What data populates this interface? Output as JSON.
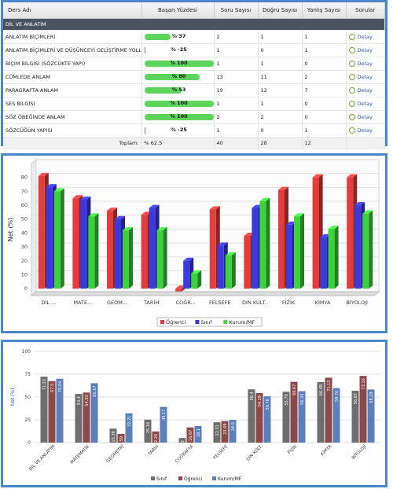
{
  "table": {
    "headers": [
      "Ders Adı",
      "Başarı Yüzdesi",
      "Soru Sayısı",
      "Doğru Sayısı",
      "Yanlış Sayısı",
      "Sorular"
    ],
    "section": "DİL VE ANLATIM",
    "rows": [
      {
        "name": "ANLATIM BİÇİMLERİ",
        "pct_label": "% 37",
        "pct": 37,
        "soru": "2",
        "dogru": "1",
        "yanlis": "1",
        "link": "Detay"
      },
      {
        "name": "ANLATIM BİÇİMLERİ VE DÜŞÜNCEYİ GELİŞTİRME YOLLARI",
        "pct_label": "% -25",
        "pct": -25,
        "soru": "1",
        "dogru": "0",
        "yanlis": "1",
        "link": "Detay"
      },
      {
        "name": "BİÇİM BİLGİSİ (SÖZCÜKTE YAPI)",
        "pct_label": "% 100",
        "pct": 100,
        "soru": "1",
        "dogru": "1",
        "yanlis": "0",
        "link": "Detay"
      },
      {
        "name": "CÜMLEDE ANLAM",
        "pct_label": "% 80",
        "pct": 80,
        "soru": "13",
        "dogru": "11",
        "yanlis": "2",
        "link": "Detay"
      },
      {
        "name": "PARAGRAFTA ANLAM",
        "pct_label": "% 53",
        "pct": 53,
        "soru": "19",
        "dogru": "12",
        "yanlis": "7",
        "link": "Detay"
      },
      {
        "name": "SES BİLGİSİ",
        "pct_label": "% 100",
        "pct": 100,
        "soru": "1",
        "dogru": "1",
        "yanlis": "0",
        "link": "Detay"
      },
      {
        "name": "SÖZ ÖBEĞİNDE ANLAM",
        "pct_label": "% 100",
        "pct": 100,
        "soru": "2",
        "dogru": "2",
        "yanlis": "0",
        "link": "Detay"
      },
      {
        "name": "SÖZCÜĞÜN YAPISI",
        "pct_label": "% -25",
        "pct": -25,
        "soru": "1",
        "dogru": "0",
        "yanlis": "1",
        "link": "Detay"
      }
    ],
    "total": {
      "label": "Toplam:",
      "pct": "% 62.5",
      "soru": "40",
      "dogru": "28",
      "yanlis": "12"
    }
  },
  "chart_data": [
    {
      "type": "bar",
      "ylabel": "Net (%)",
      "ylim": [
        -5,
        90
      ],
      "yticks": [
        0,
        10,
        20,
        30,
        40,
        50,
        60,
        70,
        80
      ],
      "categories": [
        "DİL ...",
        "MATE...",
        "GEOM...",
        "TARİH",
        "COĞR...",
        "FELSEFE",
        "DİN KÜLT.",
        "FİZİK",
        "KİMYA",
        "BİYOLOJİ"
      ],
      "series": [
        {
          "name": "Öğrenci",
          "color": "#e53d3d",
          "values": [
            81,
            65,
            56,
            53,
            -2,
            57,
            38,
            71,
            80,
            80
          ]
        },
        {
          "name": "Sınıf",
          "color": "#3a3ae0",
          "values": [
            73,
            64,
            50,
            58,
            20,
            31,
            58,
            46,
            37,
            60
          ]
        },
        {
          "name": "Kurum/MF",
          "color": "#3ed13e",
          "values": [
            70,
            52,
            42,
            42,
            11,
            24,
            63,
            52,
            43,
            54
          ]
        }
      ],
      "legend": "bottom",
      "grid": true
    },
    {
      "type": "bar",
      "ylabel": "Net (%)",
      "ylim": [
        0,
        100
      ],
      "yticks": [
        0,
        25,
        50,
        75,
        100
      ],
      "categories": [
        "DİL VE ANLATIM",
        "MATEMATİK",
        "GEOMETRİ",
        "TARİH",
        "COĞRAFYA",
        "FELSEFE",
        "DİN KÜLT.",
        "FİZİK",
        "KİMYA",
        "BİYOLOJİ"
      ],
      "series": [
        {
          "name": "Sınıf",
          "color": "#6e6e6e",
          "values": [
            72.33,
            53.4,
            15.38,
            25.16,
            5.03,
            22.31,
            58.4,
            55.79,
            66.48,
            56.87
          ]
        },
        {
          "name": "Öğrenci",
          "color": "#8a4a4a",
          "values": [
            67.5,
            54.93,
            9.59,
            12.26,
            16.67,
            23.69,
            54.29,
            66.67,
            71.15,
            73.16
          ]
        },
        {
          "name": "Kurum/MF",
          "color": "#5b7fb8",
          "values": [
            70.04,
            65.17,
            32.21,
            39.17,
            18.1,
            24.9,
            50.78,
            56.33,
            59.76,
            58.29
          ]
        }
      ],
      "labels": [
        [
          "72.33",
          "67.5",
          "70.04"
        ],
        [
          "53.4",
          "54.93",
          "65.17"
        ],
        [
          "15.38",
          "9.59",
          "32.21"
        ],
        [
          "25.16",
          "12.26",
          "39.17"
        ],
        [
          "5.03",
          "16.67",
          "18.1"
        ],
        [
          "22.31",
          "23.69",
          "24.9"
        ],
        [
          "58.4",
          "54.29",
          "50.78"
        ],
        [
          "55.79",
          "66.67",
          "56.33"
        ],
        [
          "66.48",
          "71.15",
          "59.76"
        ],
        [
          "56.87",
          "73.16",
          "58.29"
        ]
      ],
      "legend": "bottom",
      "grid": true
    }
  ]
}
